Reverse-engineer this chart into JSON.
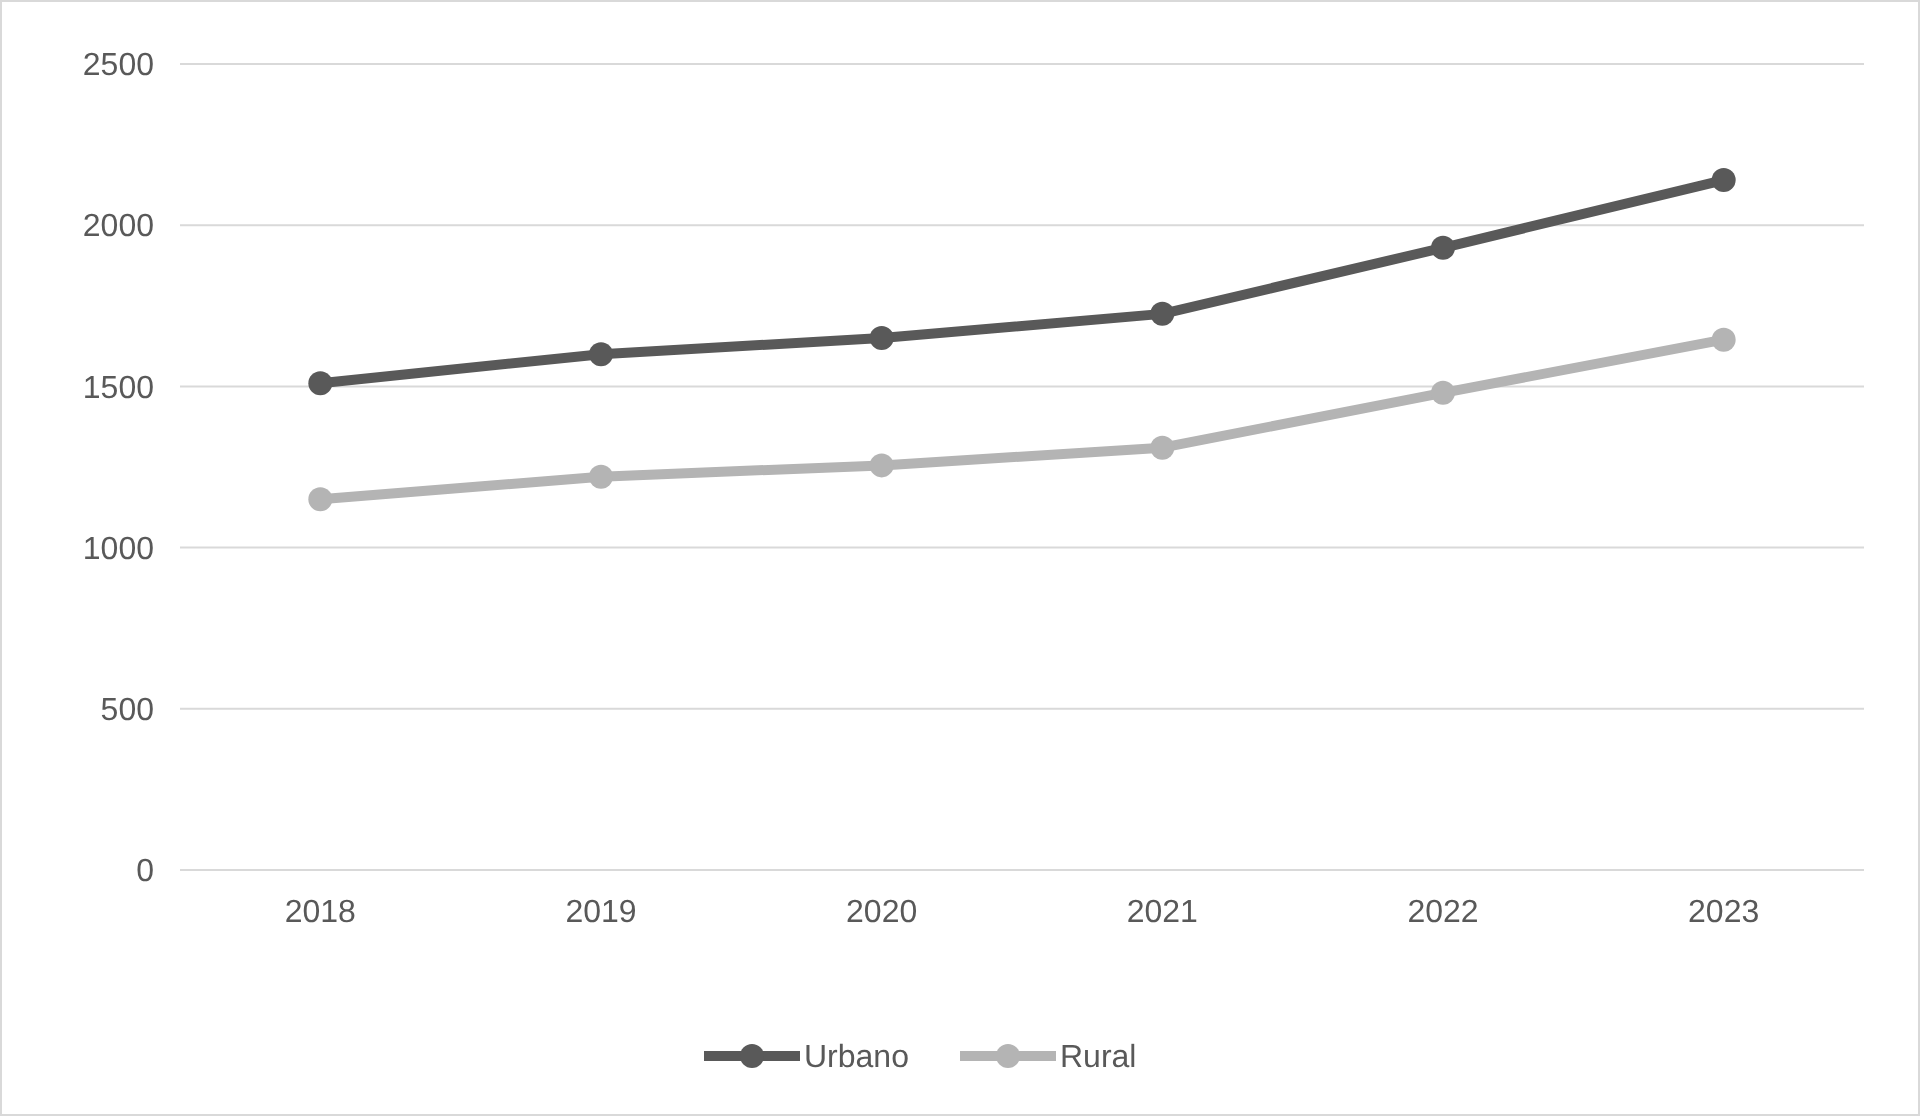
{
  "chart_data": {
    "type": "line",
    "categories": [
      "2018",
      "2019",
      "2020",
      "2021",
      "2022",
      "2023"
    ],
    "series": [
      {
        "name": "Urbano",
        "color": "#595959",
        "values": [
          1510,
          1600,
          1650,
          1725,
          1930,
          2140
        ]
      },
      {
        "name": "Rural",
        "color": "#b4b4b4",
        "values": [
          1150,
          1220,
          1255,
          1310,
          1480,
          1645
        ]
      }
    ],
    "ylim": [
      0,
      2500
    ],
    "yticks": [
      0,
      500,
      1000,
      1500,
      2000,
      2500
    ],
    "grid": "y",
    "legend": "bottom",
    "marker": "circle",
    "line_style": "solid"
  }
}
